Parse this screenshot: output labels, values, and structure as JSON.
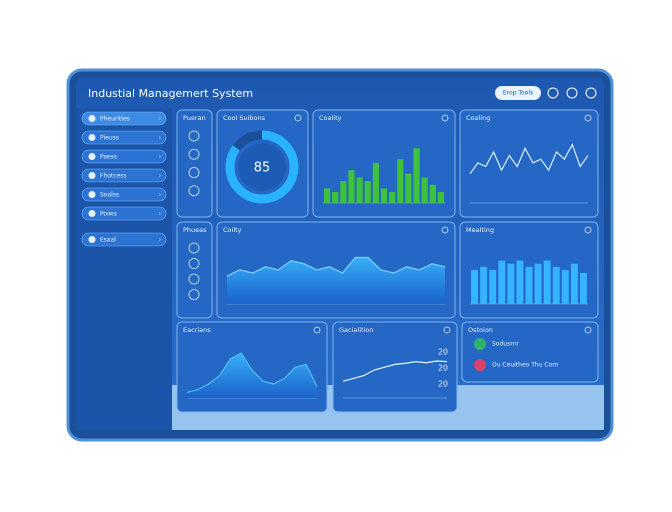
{
  "header": {
    "title": "Industial Managemert System",
    "button": "Erop Tools"
  },
  "sidebar": [
    "Pheurities",
    "Pieuss",
    "Paess",
    "Fhotcess",
    "Soalss",
    "Poiws",
    "Esaal"
  ],
  "panels": {
    "icons1": {
      "title": "Pueran"
    },
    "gauge": {
      "title": "Cool Suibons",
      "value": 85
    },
    "bars1": {
      "title": "Coality",
      "values": [
        20,
        15,
        30,
        45,
        35,
        30,
        55,
        20,
        15,
        60,
        40,
        75,
        35,
        25,
        15
      ],
      "ylim": [
        0,
        100
      ]
    },
    "line1": {
      "title": "Coaling",
      "values": [
        40,
        55,
        50,
        70,
        45,
        65,
        50,
        75,
        55,
        60,
        45,
        70,
        60,
        80,
        50,
        65
      ],
      "ylim": [
        0,
        100
      ]
    },
    "icons2": {
      "title": "Phueas"
    },
    "area1": {
      "title": "Coilty",
      "values": [
        45,
        55,
        50,
        60,
        55,
        70,
        65,
        55,
        60,
        50,
        75,
        75,
        55,
        50,
        60,
        55,
        65,
        60
      ],
      "ylim": [
        0,
        100
      ]
    },
    "bars2": {
      "title": "Mealting",
      "values": [
        55,
        60,
        55,
        70,
        65,
        70,
        60,
        65,
        70,
        60,
        55,
        65,
        50
      ],
      "ylim": [
        0,
        100
      ]
    },
    "area2": {
      "title": "Eacrians",
      "values": [
        10,
        15,
        25,
        40,
        70,
        80,
        50,
        30,
        25,
        35,
        55,
        60,
        20
      ],
      "ylim": [
        0,
        100
      ]
    },
    "line2": {
      "title": "Gacialition",
      "values": [
        30,
        35,
        40,
        50,
        55,
        60,
        62,
        65,
        63,
        66,
        65
      ],
      "ylim": [
        0,
        100
      ],
      "labels": [
        "20",
        "20",
        "20"
      ]
    },
    "list": {
      "title": "Ostoion",
      "items": [
        "Sodusrnr",
        "Ou Ceuitheo Thu Corn"
      ]
    }
  }
}
